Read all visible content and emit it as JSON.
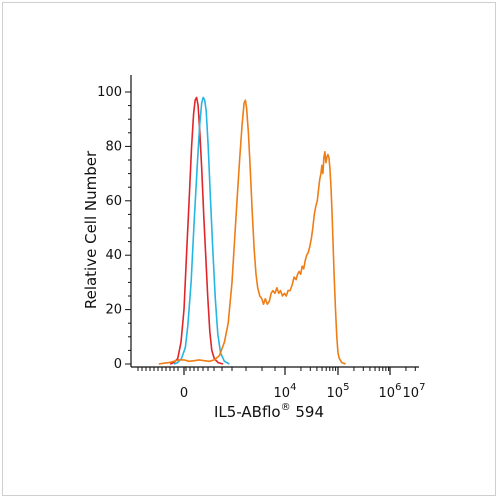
{
  "chart_data": {
    "type": "line",
    "xlabel": {
      "base": "IL5-ABflo",
      "reg": "®",
      "tail": " 594"
    },
    "ylabel": "Relative Cell Number",
    "ylim": [
      0,
      100
    ],
    "y_ticks": [
      "0",
      "20",
      "40",
      "60",
      "80",
      "100"
    ],
    "x_ticks": [
      {
        "label": "0",
        "exp": ""
      },
      {
        "label": "10",
        "exp": "4"
      },
      {
        "label": "10",
        "exp": "5"
      },
      {
        "label": "10",
        "exp": "6"
      },
      {
        "label": "10",
        "exp": "7"
      }
    ],
    "grid": false,
    "series": [
      {
        "color": "#e0262b",
        "points": [
          [
            -0.55,
            0
          ],
          [
            -0.4,
            0.5
          ],
          [
            -0.25,
            2
          ],
          [
            -0.12,
            8
          ],
          [
            0,
            20
          ],
          [
            0.1,
            40
          ],
          [
            0.2,
            60
          ],
          [
            0.3,
            80
          ],
          [
            0.38,
            92
          ],
          [
            0.44,
            97
          ],
          [
            0.5,
            98
          ],
          [
            0.56,
            95
          ],
          [
            0.62,
            86
          ],
          [
            0.7,
            72
          ],
          [
            0.78,
            55
          ],
          [
            0.86,
            40
          ],
          [
            0.94,
            25
          ],
          [
            1.02,
            12
          ],
          [
            1.1,
            5
          ],
          [
            1.2,
            2
          ],
          [
            1.35,
            0.5
          ],
          [
            1.55,
            0
          ]
        ]
      },
      {
        "color": "#25b6e2",
        "points": [
          [
            -0.4,
            0
          ],
          [
            -0.25,
            0.5
          ],
          [
            -0.1,
            2
          ],
          [
            0.05,
            6
          ],
          [
            0.15,
            14
          ],
          [
            0.28,
            30
          ],
          [
            0.4,
            52
          ],
          [
            0.52,
            72
          ],
          [
            0.62,
            88
          ],
          [
            0.7,
            96
          ],
          [
            0.76,
            98
          ],
          [
            0.82,
            97
          ],
          [
            0.88,
            93
          ],
          [
            0.96,
            80
          ],
          [
            1.04,
            62
          ],
          [
            1.14,
            42
          ],
          [
            1.24,
            24
          ],
          [
            1.34,
            11
          ],
          [
            1.45,
            4
          ],
          [
            1.6,
            1
          ],
          [
            1.8,
            0
          ]
        ]
      },
      {
        "color": "#ee7d16",
        "points": [
          [
            -1.0,
            0
          ],
          [
            -0.8,
            0.3
          ],
          [
            -0.6,
            0.5
          ],
          [
            -0.4,
            1
          ],
          [
            -0.2,
            1.5
          ],
          [
            0,
            1.5
          ],
          [
            0.2,
            1
          ],
          [
            0.4,
            1.2
          ],
          [
            0.6,
            1.5
          ],
          [
            0.8,
            1.2
          ],
          [
            1.0,
            1
          ],
          [
            1.2,
            1.5
          ],
          [
            1.4,
            3
          ],
          [
            1.6,
            8
          ],
          [
            1.75,
            15
          ],
          [
            1.9,
            30
          ],
          [
            2.0,
            45
          ],
          [
            2.1,
            60
          ],
          [
            2.2,
            75
          ],
          [
            2.3,
            88
          ],
          [
            2.38,
            96
          ],
          [
            2.43,
            97
          ],
          [
            2.48,
            94
          ],
          [
            2.55,
            85
          ],
          [
            2.62,
            72
          ],
          [
            2.7,
            56
          ],
          [
            2.78,
            42
          ],
          [
            2.85,
            33
          ],
          [
            2.92,
            28
          ],
          [
            3.0,
            25
          ],
          [
            3.08,
            24
          ],
          [
            3.15,
            22
          ],
          [
            3.22,
            24
          ],
          [
            3.3,
            22
          ],
          [
            3.38,
            23
          ],
          [
            3.45,
            26
          ],
          [
            3.52,
            27
          ],
          [
            3.6,
            26
          ],
          [
            3.68,
            28
          ],
          [
            3.75,
            26
          ],
          [
            3.82,
            27
          ],
          [
            3.9,
            25
          ],
          [
            3.98,
            26
          ],
          [
            4.05,
            25
          ],
          [
            4.12,
            27
          ],
          [
            4.2,
            27
          ],
          [
            4.28,
            29
          ],
          [
            4.36,
            32
          ],
          [
            4.44,
            31
          ],
          [
            4.5,
            33
          ],
          [
            4.56,
            34
          ],
          [
            4.62,
            33
          ],
          [
            4.68,
            36
          ],
          [
            4.74,
            35
          ],
          [
            4.8,
            38
          ],
          [
            4.86,
            40
          ],
          [
            4.92,
            41
          ],
          [
            4.98,
            43
          ],
          [
            5.04,
            46
          ],
          [
            5.1,
            50
          ],
          [
            5.16,
            55
          ],
          [
            5.22,
            58
          ],
          [
            5.28,
            60
          ],
          [
            5.34,
            65
          ],
          [
            5.38,
            68
          ],
          [
            5.42,
            70
          ],
          [
            5.46,
            73
          ],
          [
            5.5,
            70
          ],
          [
            5.54,
            76
          ],
          [
            5.58,
            78
          ],
          [
            5.62,
            74
          ],
          [
            5.66,
            76
          ],
          [
            5.7,
            77
          ],
          [
            5.74,
            76
          ],
          [
            5.78,
            72
          ],
          [
            5.82,
            65
          ],
          [
            5.86,
            56
          ],
          [
            5.9,
            45
          ],
          [
            5.95,
            32
          ],
          [
            6.0,
            20
          ],
          [
            6.05,
            10
          ],
          [
            6.1,
            4
          ],
          [
            6.15,
            2
          ],
          [
            6.25,
            0.5
          ],
          [
            6.4,
            0
          ]
        ]
      }
    ]
  }
}
